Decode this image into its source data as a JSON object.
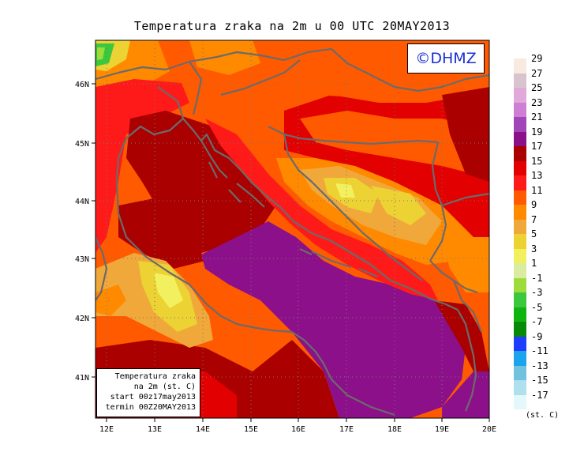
{
  "title": "Temperatura zraka na 2m u 00 UTC 20MAY2013",
  "logo": "©DHMZ",
  "info_box": {
    "line1": "Temperatura zraka",
    "line2": "na 2m (st. C)",
    "line3": "start 00z17may2013",
    "line4": "termin 00Z20MAY2013"
  },
  "axes": {
    "lon_labels": [
      "12E",
      "13E",
      "14E",
      "15E",
      "16E",
      "17E",
      "18E",
      "19E",
      "20E"
    ],
    "lat_labels": [
      "46N",
      "45N",
      "44N",
      "43N",
      "42N",
      "41N"
    ],
    "lon_range": [
      11.7,
      20.0
    ],
    "lat_range": [
      40.25,
      46.75
    ],
    "grid": "dotted"
  },
  "colorbar": {
    "labels": [
      "29",
      "27",
      "25",
      "23",
      "21",
      "19",
      "17",
      "15",
      "13",
      "11",
      "9",
      "7",
      "5",
      "3",
      "1",
      "-1",
      "-3",
      "-5",
      "-7",
      "-9",
      "-11",
      "-13",
      "-15",
      "-17"
    ],
    "colors": [
      "#f7eadf",
      "#d9c3cf",
      "#e0a9d9",
      "#cf7fd3",
      "#a046b8",
      "#8c1089",
      "#aa0000",
      "#e30000",
      "#ff1a1a",
      "#ff5a00",
      "#ff8a00",
      "#f0a83a",
      "#ecd233",
      "#f3f060",
      "#d9eca0",
      "#9edc3b",
      "#3cc83c",
      "#0fb40f",
      "#078a07",
      "#1f3dff",
      "#1ba4ec",
      "#70c2de",
      "#aee0ee",
      "#e4f7fb"
    ],
    "unit": "(st. C)"
  }
}
